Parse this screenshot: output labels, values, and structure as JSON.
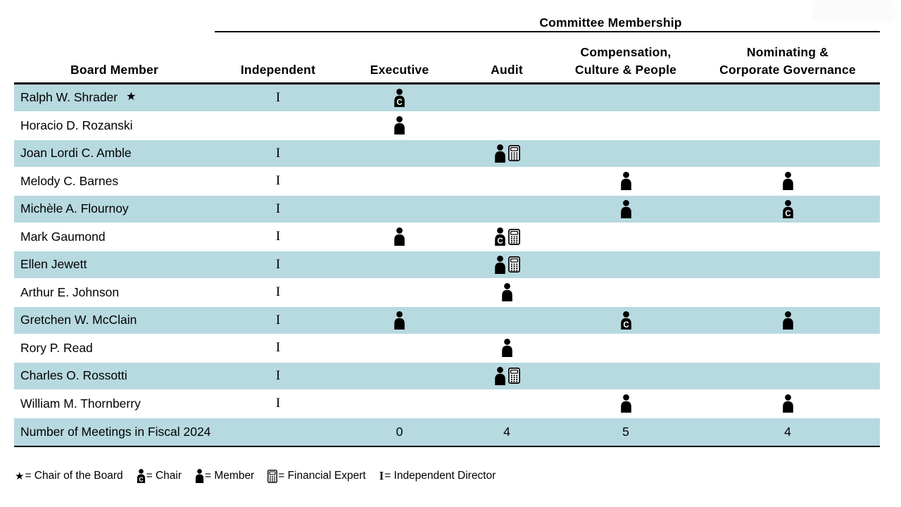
{
  "header": {
    "group_title": "Committee Membership",
    "columns": [
      {
        "id": "board_member",
        "label_lines": [
          "Board Member"
        ]
      },
      {
        "id": "independent",
        "label_lines": [
          "Independent"
        ]
      },
      {
        "id": "executive",
        "label_lines": [
          "Executive"
        ]
      },
      {
        "id": "audit",
        "label_lines": [
          "Audit"
        ]
      },
      {
        "id": "compensation",
        "label_lines": [
          "Compensation,",
          "Culture & People"
        ]
      },
      {
        "id": "nominating",
        "label_lines": [
          "Nominating &",
          "Corporate Governance"
        ]
      }
    ]
  },
  "table": {
    "rows": [
      {
        "name": "Ralph W. Shrader",
        "chair_of_board": true,
        "independent": "I",
        "executive": "chair",
        "audit": "",
        "compensation": "",
        "nominating": ""
      },
      {
        "name": "Horacio D. Rozanski",
        "chair_of_board": false,
        "independent": "",
        "executive": "member",
        "audit": "",
        "compensation": "",
        "nominating": ""
      },
      {
        "name": "Joan Lordi C. Amble",
        "chair_of_board": false,
        "independent": "I",
        "executive": "",
        "audit": "member+fe",
        "compensation": "",
        "nominating": ""
      },
      {
        "name": "Melody C. Barnes",
        "chair_of_board": false,
        "independent": "I",
        "executive": "",
        "audit": "",
        "compensation": "member",
        "nominating": "member"
      },
      {
        "name": "Michèle A. Flournoy",
        "chair_of_board": false,
        "independent": "I",
        "executive": "",
        "audit": "",
        "compensation": "member",
        "nominating": "chair"
      },
      {
        "name": "Mark Gaumond",
        "chair_of_board": false,
        "independent": "I",
        "executive": "member",
        "audit": "chair+fe",
        "compensation": "",
        "nominating": ""
      },
      {
        "name": "Ellen Jewett",
        "chair_of_board": false,
        "independent": "I",
        "executive": "",
        "audit": "member+fe",
        "compensation": "",
        "nominating": ""
      },
      {
        "name": "Arthur E. Johnson",
        "chair_of_board": false,
        "independent": "I",
        "executive": "",
        "audit": "member",
        "compensation": "",
        "nominating": ""
      },
      {
        "name": "Gretchen W. McClain",
        "chair_of_board": false,
        "independent": "I",
        "executive": "member",
        "audit": "",
        "compensation": "chair",
        "nominating": "member"
      },
      {
        "name": "Rory P. Read",
        "chair_of_board": false,
        "independent": "I",
        "executive": "",
        "audit": "member",
        "compensation": "",
        "nominating": ""
      },
      {
        "name": "Charles O. Rossotti",
        "chair_of_board": false,
        "independent": "I",
        "executive": "",
        "audit": "member+fe",
        "compensation": "",
        "nominating": ""
      },
      {
        "name": "William M. Thornberry",
        "chair_of_board": false,
        "independent": "I",
        "executive": "",
        "audit": "",
        "compensation": "member",
        "nominating": "member"
      }
    ],
    "meetings_row": {
      "label": "Number of Meetings in Fiscal 2024",
      "executive": "0",
      "audit": "4",
      "compensation": "5",
      "nominating": "4"
    }
  },
  "legend": {
    "items": [
      {
        "icon": "star",
        "label": "= Chair of the Board"
      },
      {
        "icon": "chair",
        "label": "= Chair"
      },
      {
        "icon": "member",
        "label": "= Member"
      },
      {
        "icon": "calculator",
        "label": "= Financial Expert"
      },
      {
        "icon": "independent",
        "label": "= Independent Director"
      }
    ]
  },
  "symbols": {
    "star": "★",
    "independent": "I",
    "chair_letter": "C"
  },
  "colors": {
    "row_shade": "#b7d9e0",
    "text": "#000000",
    "background": "#ffffff"
  }
}
